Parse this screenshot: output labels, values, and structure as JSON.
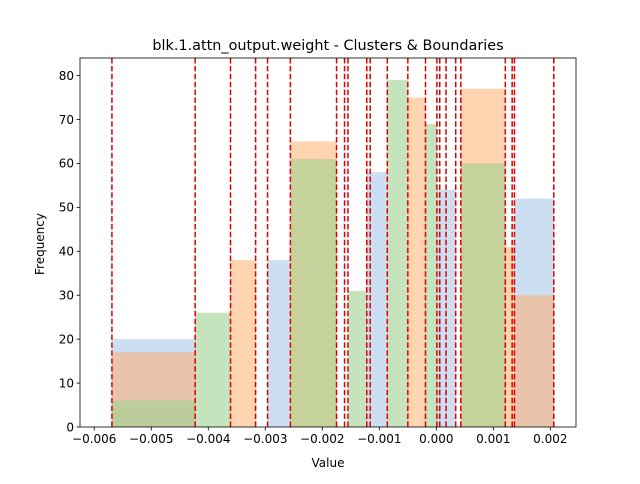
{
  "chart_data": {
    "type": "bar",
    "title": "blk.1.attn_output.weight - Clusters & Boundaries",
    "xlabel": "Value",
    "ylabel": "Frequency",
    "xlim": [
      -0.00625,
      0.00245
    ],
    "ylim": [
      0,
      84
    ],
    "xticks": [
      -0.006,
      -0.005,
      -0.004,
      -0.003,
      -0.002,
      -0.001,
      0.0,
      0.001,
      0.002
    ],
    "xtick_labels": [
      "−0.006",
      "−0.005",
      "−0.004",
      "−0.003",
      "−0.002",
      "−0.001",
      "0.000",
      "0.001",
      "0.002"
    ],
    "yticks": [
      0,
      10,
      20,
      30,
      40,
      50,
      60,
      70,
      80
    ],
    "ytick_labels": [
      "0",
      "10",
      "20",
      "30",
      "40",
      "50",
      "60",
      "70",
      "80"
    ],
    "boundary_color": "#dd0000",
    "boundaries": [
      -0.00569,
      -0.00423,
      -0.00361,
      -0.00317,
      -0.00296,
      -0.00256,
      -0.00175,
      -0.00161,
      -0.00155,
      -0.00122,
      -0.00116,
      -0.00086,
      -0.0005,
      -0.00019,
      1e-05,
      6e-05,
      0.00017,
      0.00034,
      0.00043,
      0.00121,
      0.00133,
      0.00137,
      0.00206
    ],
    "series": [
      {
        "color": "#aac8e8",
        "opacity": 0.6,
        "bins": [
          {
            "x0": -0.00569,
            "x1": -0.00423,
            "value": 20
          },
          {
            "x0": -0.00296,
            "x1": -0.00256,
            "value": 38
          },
          {
            "x0": -0.00122,
            "x1": -0.00086,
            "value": 58
          },
          {
            "x0": 1e-05,
            "x1": 0.00034,
            "value": 54
          },
          {
            "x0": 0.00137,
            "x1": 0.00206,
            "value": 52
          }
        ]
      },
      {
        "color": "#ffb070",
        "opacity": 0.55,
        "bins": [
          {
            "x0": -0.00569,
            "x1": -0.00423,
            "value": 17
          },
          {
            "x0": -0.00361,
            "x1": -0.00317,
            "value": 38
          },
          {
            "x0": -0.00256,
            "x1": -0.00175,
            "value": 65
          },
          {
            "x0": -0.0005,
            "x1": -0.00019,
            "value": 75
          },
          {
            "x0": 0.00043,
            "x1": 0.00121,
            "value": 77
          },
          {
            "x0": 0.00121,
            "x1": 0.00137,
            "value": 41
          },
          {
            "x0": 0.00137,
            "x1": 0.00206,
            "value": 30
          }
        ]
      },
      {
        "color": "#9fd090",
        "opacity": 0.6,
        "bins": [
          {
            "x0": -0.00569,
            "x1": -0.00423,
            "value": 6
          },
          {
            "x0": -0.00423,
            "x1": -0.00361,
            "value": 26
          },
          {
            "x0": -0.00256,
            "x1": -0.00175,
            "value": 61
          },
          {
            "x0": -0.00155,
            "x1": -0.00122,
            "value": 31
          },
          {
            "x0": -0.00086,
            "x1": -0.0005,
            "value": 79
          },
          {
            "x0": -0.00019,
            "x1": 1e-05,
            "value": 69
          },
          {
            "x0": 0.00043,
            "x1": 0.00121,
            "value": 60
          }
        ]
      }
    ]
  }
}
